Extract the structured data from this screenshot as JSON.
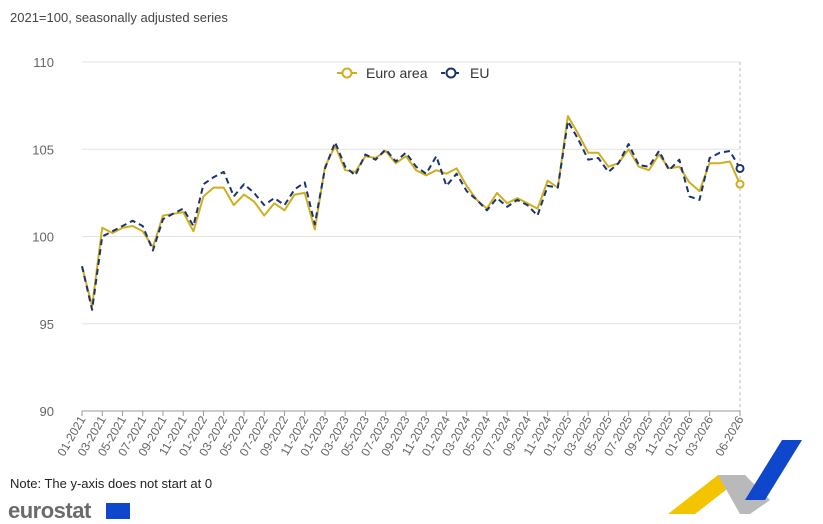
{
  "subtitle": "2021=100, seasonally adjusted series",
  "note": "Note: The y-axis does not start at 0",
  "logo": "eurostat",
  "colors": {
    "euro_area": "#cfae1f",
    "eu": "#1a3470",
    "grid": "#e3e3e3",
    "axis_text": "#666666"
  },
  "chart_data": {
    "type": "line",
    "x": [
      "01-2021",
      "02-2021",
      "03-2021",
      "04-2021",
      "05-2021",
      "06-2021",
      "07-2021",
      "08-2021",
      "09-2021",
      "10-2021",
      "11-2021",
      "12-2021",
      "01-2022",
      "02-2022",
      "03-2022",
      "04-2022",
      "05-2022",
      "06-2022",
      "07-2022",
      "08-2022",
      "09-2022",
      "10-2022",
      "11-2022",
      "12-2022",
      "01-2023",
      "02-2023",
      "03-2023",
      "04-2023",
      "05-2023",
      "06-2023",
      "07-2023",
      "08-2023",
      "09-2023",
      "10-2023",
      "11-2023",
      "12-2023",
      "01-2024",
      "02-2024",
      "03-2024",
      "04-2024",
      "05-2024",
      "06-2024",
      "07-2024",
      "08-2024",
      "09-2024",
      "10-2024",
      "11-2024",
      "12-2024",
      "01-2025",
      "02-2025",
      "03-2025",
      "04-2025",
      "05-2025",
      "06-2025",
      "07-2025",
      "08-2025",
      "09-2025",
      "10-2025",
      "11-2025",
      "12-2025",
      "01-2026",
      "02-2026",
      "03-2026",
      "04-2026",
      "05-2026",
      "06-2026"
    ],
    "x_tick_labels": [
      "01-2021",
      "03-2021",
      "05-2021",
      "07-2021",
      "09-2021",
      "11-2021",
      "01-2022",
      "03-2022",
      "05-2022",
      "07-2022",
      "09-2022",
      "11-2022",
      "01-2023",
      "03-2023",
      "05-2023",
      "07-2023",
      "09-2023",
      "11-2023",
      "01-2024",
      "03-2024",
      "05-2024",
      "07-2024",
      "09-2024",
      "11-2024",
      "01-2025",
      "03-2025",
      "05-2025",
      "07-2025",
      "09-2025",
      "11-2025",
      "01-2026",
      "03-2026",
      "06-2026"
    ],
    "series": [
      {
        "name": "Euro area",
        "values": [
          98.3,
          96.0,
          100.5,
          100.2,
          100.5,
          100.6,
          100.3,
          99.4,
          101.2,
          101.3,
          101.4,
          100.3,
          102.3,
          102.8,
          102.8,
          101.8,
          102.4,
          102.0,
          101.2,
          101.9,
          101.5,
          102.4,
          102.5,
          100.4,
          104.0,
          105.2,
          103.8,
          103.7,
          104.6,
          104.5,
          104.9,
          104.2,
          104.6,
          103.8,
          103.5,
          103.8,
          103.6,
          103.9,
          102.9,
          102.1,
          101.6,
          102.5,
          101.9,
          102.2,
          101.9,
          101.6,
          103.2,
          102.8,
          106.9,
          105.9,
          104.8,
          104.8,
          104.0,
          104.2,
          105.0,
          104.0,
          103.8,
          104.7,
          103.9,
          104.0,
          103.1,
          102.6,
          104.2,
          104.2,
          104.3,
          103.0
        ]
      },
      {
        "name": "EU",
        "values": [
          98.3,
          95.8,
          100.0,
          100.3,
          100.6,
          100.9,
          100.6,
          99.2,
          101.0,
          101.3,
          101.6,
          100.6,
          103.0,
          103.4,
          103.7,
          102.3,
          103.0,
          102.5,
          101.8,
          102.2,
          101.8,
          102.7,
          103.1,
          100.7,
          103.9,
          105.4,
          104.0,
          103.5,
          104.7,
          104.4,
          105.0,
          104.3,
          104.8,
          104.0,
          103.6,
          104.6,
          102.9,
          103.6,
          102.6,
          102.1,
          101.5,
          102.2,
          101.7,
          102.1,
          101.8,
          101.2,
          102.9,
          102.8,
          106.6,
          105.6,
          104.4,
          104.5,
          103.7,
          104.2,
          105.3,
          104.1,
          104.0,
          104.9,
          103.8,
          104.4,
          102.3,
          102.1,
          104.5,
          104.8,
          104.9,
          103.9
        ]
      }
    ],
    "y_ticks": [
      90,
      95,
      100,
      105,
      110
    ],
    "ylim": [
      90,
      110
    ],
    "grid": true,
    "legend_position": "top-center"
  }
}
